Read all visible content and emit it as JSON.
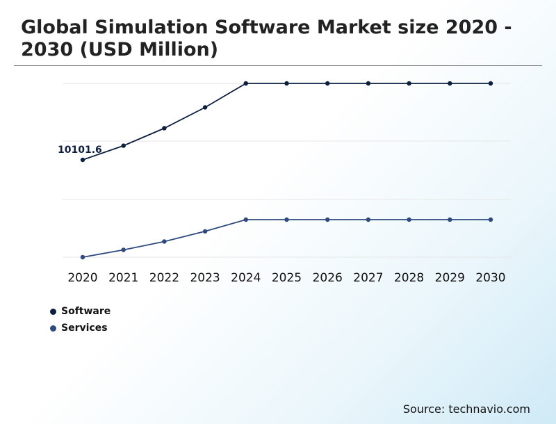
{
  "page": {
    "title": "Global Simulation Software Market size 2020 - 2030 (USD Million)",
    "source": "Source: technavio.com"
  },
  "colors": {
    "software": "#0d1f3f",
    "services": "#2e4a7d",
    "grid": "#e6e6e6",
    "label": "#0d1f3f"
  },
  "chart_data": {
    "type": "line",
    "title": "Global Simulation Software Market size 2020 - 2030 (USD Million)",
    "xlabel": "",
    "ylabel": "",
    "grid": true,
    "legend": "bottom-left",
    "categories": [
      "2020",
      "2021",
      "2022",
      "2023",
      "2024",
      "2025",
      "2026",
      "2027",
      "2028",
      "2029",
      "2030"
    ],
    "series": [
      {
        "name": "Software",
        "values": [
          10101.6,
          11020,
          12150,
          13500,
          15050,
          15050,
          15050,
          15050,
          15050,
          15050,
          15050
        ]
      },
      {
        "name": "Services",
        "values": [
          0,
          480,
          1030,
          1700,
          2470,
          2470,
          2470,
          2470,
          2470,
          2470,
          2470
        ]
      }
    ],
    "annotations": [
      {
        "series": "Software",
        "category": "2020",
        "text": "10101.6"
      }
    ],
    "ylim": [
      0,
      15050
    ]
  }
}
